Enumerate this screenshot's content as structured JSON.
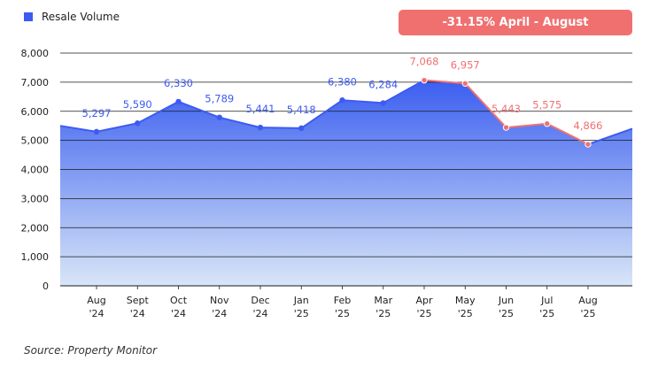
{
  "legend": {
    "label": "Resale Volume",
    "color": "#3d5bf0"
  },
  "badge": {
    "text": "-31.15% April - August",
    "color": "#f07070"
  },
  "source": "Source: Property Monitor",
  "colors": {
    "blue_line": "#3d5bf0",
    "red_line": "#f07070",
    "fill_top": "#3b5ef0",
    "fill_bottom": "#d8e6f7",
    "grid": "#1a1a1a"
  },
  "chart_data": {
    "type": "area",
    "series": [
      {
        "name": "Resale Volume",
        "values": [
          5297,
          5590,
          6330,
          5789,
          5441,
          5418,
          6380,
          6284,
          7068,
          6957,
          5443,
          5575,
          4866
        ]
      }
    ],
    "categories": [
      [
        "Aug",
        "'24"
      ],
      [
        "Sept",
        "'24"
      ],
      [
        "Oct",
        "'24"
      ],
      [
        "Nov",
        "'24"
      ],
      [
        "Dec",
        "'24"
      ],
      [
        "Jan",
        "'25"
      ],
      [
        "Feb",
        "'25"
      ],
      [
        "Mar",
        "'25"
      ],
      [
        "Apr",
        "'25"
      ],
      [
        "May",
        "'25"
      ],
      [
        "Jun",
        "'25"
      ],
      [
        "Jul",
        "'25"
      ],
      [
        "Aug",
        "'25"
      ]
    ],
    "data_labels": [
      "5,297",
      "5,590",
      "6,330",
      "5,789",
      "5,441",
      "5,418",
      "6,380",
      "6,284",
      "7,068",
      "6,957",
      "5,443",
      "5,575",
      "4,866"
    ],
    "yticks": [
      "0",
      "1,000",
      "2,000",
      "3,000",
      "4,000",
      "5,000",
      "6,000",
      "7,000",
      "8,000"
    ],
    "ylim": [
      0,
      8000
    ],
    "highlight_from_index": 8,
    "area_edge_left": 5500,
    "area_edge_right": 5400,
    "title": "",
    "xlabel": "",
    "ylabel": ""
  }
}
